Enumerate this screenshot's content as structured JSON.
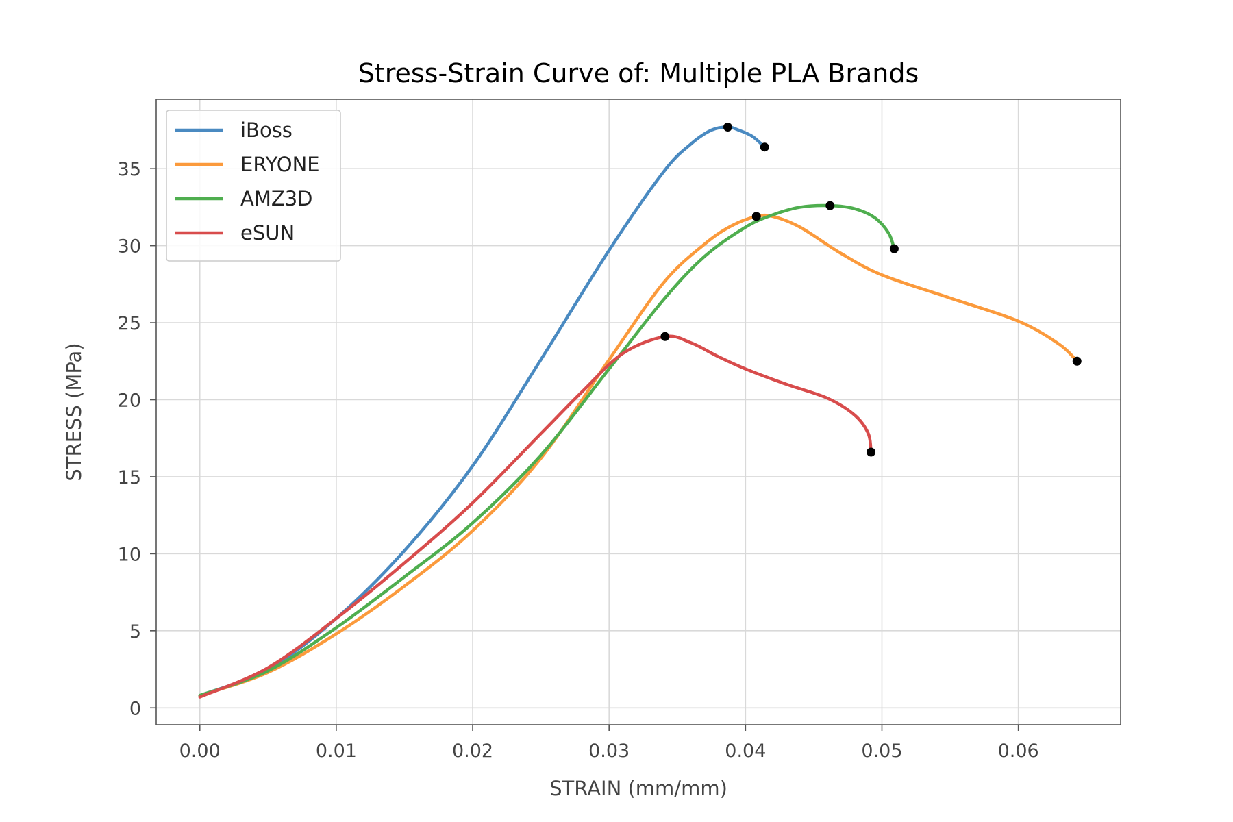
{
  "chart_data": {
    "type": "line",
    "title": "Stress-Strain Curve of: Multiple PLA Brands",
    "xlabel": "STRAIN (mm/mm)",
    "ylabel": "STRESS (MPa)",
    "xlim": [
      -0.0032,
      0.0675
    ],
    "ylim": [
      -1.1,
      39.5
    ],
    "x_ticks": [
      0.0,
      0.01,
      0.02,
      0.03,
      0.04,
      0.05,
      0.06
    ],
    "x_tick_labels": [
      "0.00",
      "0.01",
      "0.02",
      "0.03",
      "0.04",
      "0.05",
      "0.06"
    ],
    "y_ticks": [
      0,
      5,
      10,
      15,
      20,
      25,
      30,
      35
    ],
    "y_tick_labels": [
      "0",
      "5",
      "10",
      "15",
      "20",
      "25",
      "30",
      "35"
    ],
    "grid": true,
    "legend_position": "top-left",
    "series": [
      {
        "name": "iBoss",
        "color": "#4a8ac1",
        "x": [
          0.0,
          0.005,
          0.01,
          0.015,
          0.02,
          0.025,
          0.03,
          0.034,
          0.036,
          0.0375,
          0.0387,
          0.0395,
          0.0405,
          0.0414
        ],
        "y": [
          0.8,
          2.5,
          5.8,
          10.2,
          15.7,
          22.6,
          29.7,
          34.8,
          36.6,
          37.5,
          37.7,
          37.5,
          37.1,
          36.4
        ],
        "markers": [
          {
            "x": 0.0387,
            "y": 37.7
          },
          {
            "x": 0.0414,
            "y": 36.4
          }
        ]
      },
      {
        "name": "ERYONE",
        "color": "#fb9a3c",
        "x": [
          0.0,
          0.005,
          0.01,
          0.015,
          0.02,
          0.025,
          0.03,
          0.034,
          0.037,
          0.039,
          0.0408,
          0.042,
          0.044,
          0.047,
          0.05,
          0.055,
          0.06,
          0.063,
          0.0643
        ],
        "y": [
          0.8,
          2.3,
          4.8,
          7.9,
          11.5,
          16.2,
          22.6,
          27.6,
          30.1,
          31.3,
          31.9,
          31.9,
          31.2,
          29.5,
          28.1,
          26.6,
          25.1,
          23.6,
          22.5
        ],
        "markers": [
          {
            "x": 0.0408,
            "y": 31.9
          },
          {
            "x": 0.0643,
            "y": 22.5
          }
        ]
      },
      {
        "name": "AMZ3D",
        "color": "#4fae4f",
        "x": [
          0.0,
          0.005,
          0.01,
          0.015,
          0.02,
          0.025,
          0.03,
          0.034,
          0.037,
          0.04,
          0.042,
          0.044,
          0.0462,
          0.048,
          0.0495,
          0.0505,
          0.0509
        ],
        "y": [
          0.8,
          2.4,
          5.2,
          8.5,
          12.0,
          16.4,
          22.0,
          26.5,
          29.3,
          31.2,
          32.0,
          32.5,
          32.6,
          32.4,
          31.8,
          30.8,
          29.8
        ],
        "markers": [
          {
            "x": 0.0462,
            "y": 32.6
          },
          {
            "x": 0.0509,
            "y": 29.8
          }
        ]
      },
      {
        "name": "eSUN",
        "color": "#d84c4c",
        "x": [
          0.0,
          0.005,
          0.01,
          0.015,
          0.02,
          0.025,
          0.028,
          0.031,
          0.0341,
          0.036,
          0.038,
          0.04,
          0.043,
          0.046,
          0.048,
          0.049,
          0.0492
        ],
        "y": [
          0.7,
          2.6,
          5.8,
          9.4,
          13.3,
          17.8,
          20.5,
          23.0,
          24.1,
          23.7,
          22.8,
          22.0,
          21.0,
          20.1,
          19.0,
          17.8,
          16.6
        ],
        "markers": [
          {
            "x": 0.0341,
            "y": 24.1
          },
          {
            "x": 0.0492,
            "y": 16.6
          }
        ]
      }
    ]
  }
}
